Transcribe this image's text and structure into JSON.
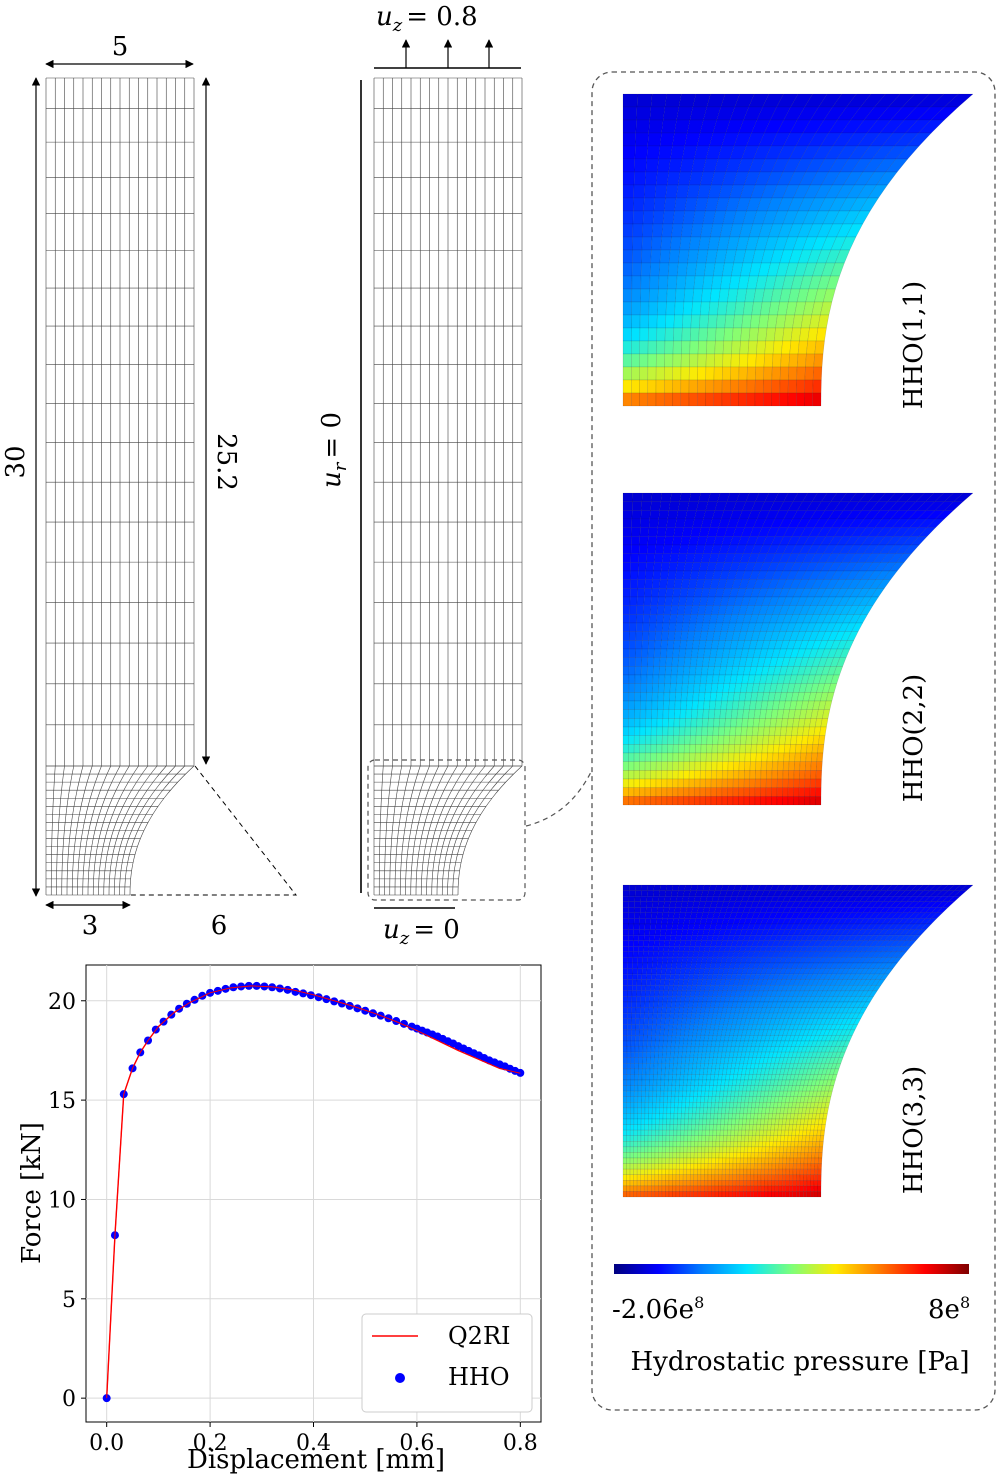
{
  "mesh_dims": {
    "width_top": "5",
    "height_total": "30",
    "height_straight": "25.2",
    "width_bottom": "3",
    "notch_width": "6"
  },
  "boundary_conditions": {
    "uz_top_var": "u",
    "uz_top_sub": "z",
    "uz_top_value": "= 0.8",
    "ur_var": "u",
    "ur_sub": "r",
    "ur_value": "= 0",
    "uz_bottom_var": "u",
    "uz_bottom_sub": "z",
    "uz_bottom_value": "= 0"
  },
  "pressure_panels": [
    {
      "label": "HHO(1,1)"
    },
    {
      "label": "HHO(2,2)"
    },
    {
      "label": "HHO(3,3)"
    }
  ],
  "colorbar": {
    "min_base": "-2.06e",
    "min_exp": "8",
    "max_base": "8e",
    "max_exp": "8",
    "title": "Hydrostatic pressure [Pa]",
    "colors": [
      "#00007f",
      "#0000ff",
      "#0080ff",
      "#00e5ff",
      "#7dff7a",
      "#ffea00",
      "#ff7800",
      "#ff0000",
      "#7f0000"
    ]
  },
  "chart_data": {
    "type": "line",
    "xlabel": "Displacement [mm]",
    "ylabel": "Force [kN]",
    "xlim": [
      -0.04,
      0.84
    ],
    "ylim": [
      -1.2,
      21.8
    ],
    "xticks": [
      "0.0",
      "0.2",
      "0.4",
      "0.6",
      "0.8"
    ],
    "xtick_values": [
      0.0,
      0.2,
      0.4,
      0.6,
      0.8
    ],
    "yticks": [
      "0",
      "5",
      "10",
      "15",
      "20"
    ],
    "ytick_values": [
      0,
      5,
      10,
      15,
      20
    ],
    "grid": true,
    "legend_position": "bottom-right",
    "series": [
      {
        "name": "Q2RI",
        "kind": "line",
        "color": "#ff0000",
        "x": [
          0.0,
          0.016,
          0.033,
          0.05,
          0.065,
          0.08,
          0.1,
          0.13,
          0.16,
          0.2,
          0.24,
          0.28,
          0.32,
          0.36,
          0.4,
          0.44,
          0.48,
          0.52,
          0.56,
          0.6,
          0.64,
          0.68,
          0.72,
          0.76,
          0.8
        ],
        "y": [
          0.0,
          8.2,
          15.3,
          16.6,
          17.4,
          18.0,
          18.7,
          19.4,
          19.9,
          20.4,
          20.65,
          20.75,
          20.7,
          20.55,
          20.3,
          20.0,
          19.7,
          19.35,
          18.95,
          18.5,
          18.0,
          17.5,
          17.05,
          16.6,
          16.35
        ]
      },
      {
        "name": "HHO",
        "kind": "scatter",
        "color": "#0000ff",
        "x": [
          0.0,
          0.016,
          0.033,
          0.05,
          0.065,
          0.08,
          0.095,
          0.11,
          0.125,
          0.14,
          0.155,
          0.17,
          0.185,
          0.2,
          0.215,
          0.23,
          0.245,
          0.26,
          0.275,
          0.29,
          0.305,
          0.32,
          0.335,
          0.35,
          0.365,
          0.38,
          0.395,
          0.41,
          0.425,
          0.44,
          0.455,
          0.47,
          0.485,
          0.5,
          0.515,
          0.53,
          0.545,
          0.56,
          0.575,
          0.59,
          0.6,
          0.61,
          0.62,
          0.63,
          0.64,
          0.65,
          0.66,
          0.67,
          0.68,
          0.69,
          0.7,
          0.71,
          0.72,
          0.73,
          0.74,
          0.75,
          0.76,
          0.77,
          0.78,
          0.79,
          0.8
        ],
        "y": [
          0.0,
          8.2,
          15.3,
          16.6,
          17.4,
          18.0,
          18.55,
          18.95,
          19.3,
          19.6,
          19.85,
          20.05,
          20.25,
          20.4,
          20.5,
          20.6,
          20.68,
          20.72,
          20.75,
          20.75,
          20.72,
          20.68,
          20.62,
          20.55,
          20.45,
          20.37,
          20.28,
          20.18,
          20.08,
          19.97,
          19.86,
          19.74,
          19.62,
          19.5,
          19.37,
          19.25,
          19.12,
          18.98,
          18.84,
          18.7,
          18.6,
          18.5,
          18.4,
          18.3,
          18.2,
          18.08,
          17.96,
          17.85,
          17.72,
          17.6,
          17.48,
          17.36,
          17.25,
          17.12,
          17.0,
          16.9,
          16.8,
          16.7,
          16.58,
          16.47,
          16.37
        ]
      }
    ]
  }
}
